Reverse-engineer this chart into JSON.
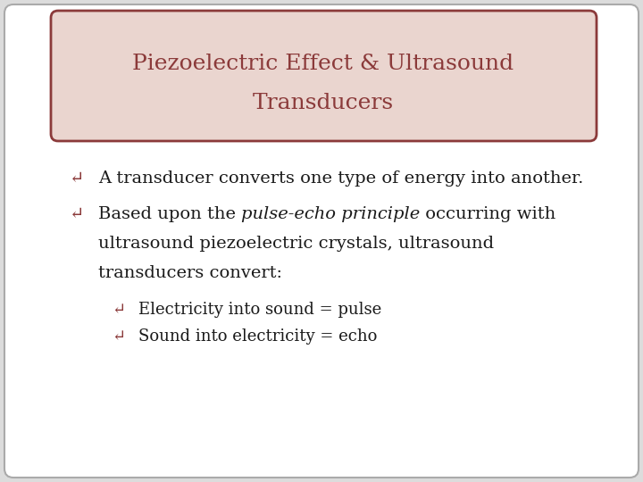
{
  "title_line1": "Piezoelectric Effect & Ultrasound",
  "title_line2": "Transducers",
  "title_color": "#8B3A3A",
  "title_bg_color": "#EAD5CF",
  "title_border_color": "#8B3A3A",
  "bg_color": "#DCDCDC",
  "slide_bg_color": "#FFFFFF",
  "bullet_color": "#8B3A3A",
  "text_color": "#1A1A1A",
  "bullet_symbol": "↵",
  "bullet1": "A transducer converts one type of energy into another.",
  "bullet2_normal1": "Based upon the ",
  "bullet2_italic": "pulse-echo principle",
  "bullet2_normal2": " occurring with",
  "bullet2_cont": "ultrasound piezoelectric crystals, ultrasound",
  "bullet2_cont2": "transducers convert:",
  "sub_bullet1": "Electricity into sound = pulse",
  "sub_bullet2": "Sound into electricity = echo",
  "font_size_title": 18,
  "font_size_body": 14,
  "font_size_sub": 13
}
